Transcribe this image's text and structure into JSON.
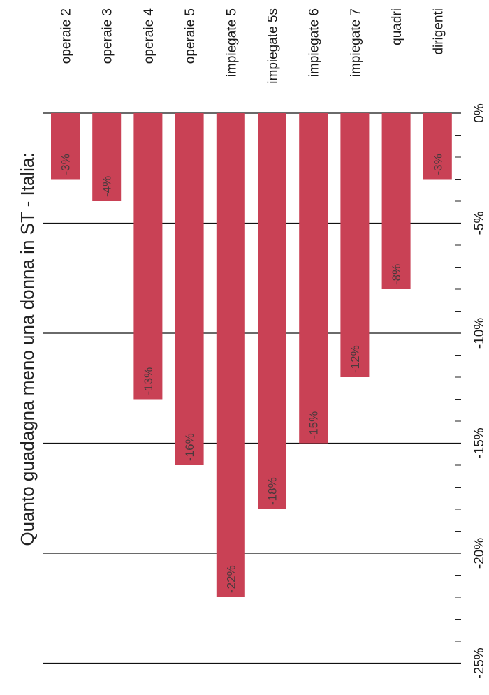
{
  "chart_data": {
    "type": "bar",
    "orientation": "horizontal",
    "title": "Quanto guadagna meno una donna in ST - Italia:",
    "categories": [
      "operaie 2",
      "operaie 3",
      "operaie 4",
      "operaie 5",
      "impiegate 5",
      "impiegate 5s",
      "impiegate 6",
      "impiegate 7",
      "quadri",
      "dirigenti"
    ],
    "values": [
      -3,
      -4,
      -13,
      -16,
      -22,
      -18,
      -15,
      -12,
      -8,
      -3
    ],
    "data_labels": [
      "-3%",
      "-4%",
      "-13%",
      "-16%",
      "-22%",
      "-18%",
      "-15%",
      "-12%",
      "-8%",
      "-3%"
    ],
    "axis": {
      "min": -25,
      "max": 0,
      "major_ticks": [
        0,
        -5,
        -10,
        -15,
        -20,
        -25
      ],
      "tick_labels": [
        "0%",
        "-5%",
        "-10%",
        "-15%",
        "-20%",
        "-25%"
      ]
    },
    "grid": true,
    "bar_color": "#c94155",
    "label_color": "#4a3a3d"
  }
}
